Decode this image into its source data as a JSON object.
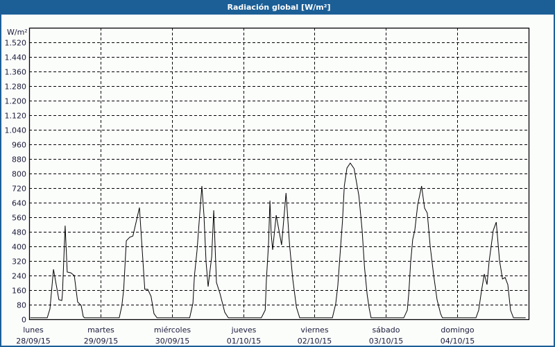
{
  "window": {
    "title": "Radiación global [W/m²]"
  },
  "chart_data": {
    "type": "line",
    "title": "Radiación global [W/m²]",
    "ylabel": "W/m²",
    "xlabel": "",
    "ylim": [
      0,
      1600
    ],
    "yticks": [
      0,
      80,
      160,
      240,
      320,
      400,
      480,
      560,
      640,
      720,
      800,
      880,
      960,
      1040,
      1120,
      1200,
      1280,
      1360,
      1440,
      1520
    ],
    "ytick_labels": [
      "0",
      "80",
      "160",
      "240",
      "320",
      "400",
      "480",
      "560",
      "640",
      "720",
      "800",
      "880",
      "960",
      "1.040",
      "1.120",
      "1.200",
      "1.280",
      "1.360",
      "1.440",
      "1.520"
    ],
    "grid": true,
    "x_categories": [
      {
        "day": "lunes",
        "date": "28/09/15"
      },
      {
        "day": "martes",
        "date": "29/09/15"
      },
      {
        "day": "miércoles",
        "date": "30/09/15"
      },
      {
        "day": "jueves",
        "date": "01/10/15"
      },
      {
        "day": "viernes",
        "date": "02/10/15"
      },
      {
        "day": "sábado",
        "date": "03/10/15"
      },
      {
        "day": "domingo",
        "date": "04/10/15"
      }
    ],
    "series": [
      {
        "color": "#000000",
        "days": [
          [
            [
              0,
              8
            ],
            [
              6.1,
              8
            ],
            [
              7,
              57
            ],
            [
              8.2,
              274
            ],
            [
              10,
              107
            ],
            [
              11,
              103
            ],
            [
              11.2,
              140
            ],
            [
              12.1,
              514
            ],
            [
              12.8,
              259
            ],
            [
              14,
              255
            ],
            [
              15.2,
              240
            ],
            [
              16.3,
              95
            ],
            [
              17.5,
              76
            ],
            [
              18.2,
              15
            ],
            [
              18.6,
              8
            ],
            [
              24,
              8
            ]
          ],
          [
            [
              0,
              8
            ],
            [
              6.3,
              8
            ],
            [
              7.2,
              76
            ],
            [
              7.8,
              164
            ],
            [
              8.7,
              431
            ],
            [
              9.8,
              450
            ],
            [
              10.9,
              457
            ],
            [
              13.1,
              613
            ],
            [
              14.9,
              164
            ],
            [
              15.9,
              164
            ],
            [
              17,
              126
            ],
            [
              18,
              30
            ],
            [
              19,
              8
            ],
            [
              24,
              8
            ]
          ],
          [
            [
              0,
              8
            ],
            [
              6,
              8
            ],
            [
              7.1,
              88
            ],
            [
              7.6,
              240
            ],
            [
              8.5,
              381
            ],
            [
              9.4,
              583
            ],
            [
              10.1,
              731
            ],
            [
              10.8,
              571
            ],
            [
              11.5,
              316
            ],
            [
              12.2,
              179
            ],
            [
              13.4,
              343
            ],
            [
              14.1,
              598
            ],
            [
              15,
              202
            ],
            [
              16.2,
              141
            ],
            [
              17.8,
              38
            ],
            [
              19,
              8
            ],
            [
              24,
              8
            ]
          ],
          [
            [
              0,
              8
            ],
            [
              6.1,
              8
            ],
            [
              7.4,
              50
            ],
            [
              7.8,
              217
            ],
            [
              8.5,
              408
            ],
            [
              9,
              651
            ],
            [
              9.4,
              469
            ],
            [
              9.9,
              381
            ],
            [
              11.1,
              571
            ],
            [
              12.9,
              408
            ],
            [
              14.4,
              693
            ],
            [
              15.6,
              408
            ],
            [
              16.7,
              217
            ],
            [
              17.9,
              65
            ],
            [
              19,
              8
            ],
            [
              24,
              8
            ]
          ],
          [
            [
              0,
              8
            ],
            [
              6,
              8
            ],
            [
              7.1,
              84
            ],
            [
              7.8,
              183
            ],
            [
              8.6,
              362
            ],
            [
              9.4,
              541
            ],
            [
              10,
              731
            ],
            [
              10.9,
              830
            ],
            [
              12,
              857
            ],
            [
              13.3,
              827
            ],
            [
              14.9,
              678
            ],
            [
              16,
              488
            ],
            [
              16.8,
              286
            ],
            [
              17.7,
              133
            ],
            [
              18.4,
              57
            ],
            [
              19,
              8
            ],
            [
              24,
              8
            ]
          ],
          [
            [
              0,
              8
            ],
            [
              6,
              8
            ],
            [
              7.2,
              50
            ],
            [
              7.7,
              145
            ],
            [
              8.3,
              312
            ],
            [
              9,
              438
            ],
            [
              9.7,
              488
            ],
            [
              10.7,
              629
            ],
            [
              12,
              731
            ],
            [
              13,
              610
            ],
            [
              13.9,
              583
            ],
            [
              14.9,
              400
            ],
            [
              16,
              248
            ],
            [
              17.2,
              107
            ],
            [
              18.4,
              30
            ],
            [
              19,
              8
            ],
            [
              24,
              8
            ]
          ],
          [
            [
              0,
              8
            ],
            [
              6.3,
              8
            ],
            [
              7.2,
              50
            ],
            [
              8.1,
              152
            ],
            [
              9.1,
              248
            ],
            [
              10,
              190
            ],
            [
              10.7,
              316
            ],
            [
              12.1,
              488
            ],
            [
              13.1,
              533
            ],
            [
              14.2,
              324
            ],
            [
              15.2,
              221
            ],
            [
              16.1,
              229
            ],
            [
              17,
              190
            ],
            [
              17.9,
              50
            ],
            [
              18.9,
              8
            ],
            [
              23,
              8
            ]
          ]
        ]
      }
    ]
  }
}
